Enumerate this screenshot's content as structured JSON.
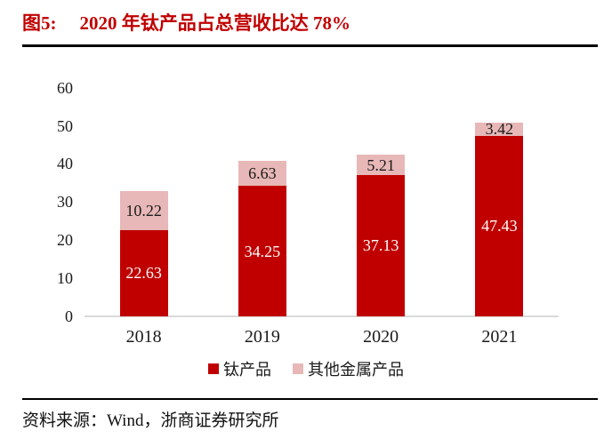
{
  "header": {
    "figure_label": "图5:",
    "title": "2020 年钛产品占总营收比达 78%"
  },
  "chart_data": {
    "type": "bar",
    "stacked": true,
    "title": "2020 年钛产品占总营收比达 78%",
    "categories": [
      "2018",
      "2019",
      "2020",
      "2021"
    ],
    "series": [
      {
        "name": "钛产品",
        "slug": "titanium-products",
        "color": "#c00000",
        "label_color": "#ffffff",
        "values": [
          22.63,
          34.25,
          37.13,
          47.43
        ]
      },
      {
        "name": "其他金属产品",
        "slug": "other-metal-products",
        "color": "#e7b8b7",
        "label_color": "#1a1a1a",
        "values": [
          10.22,
          6.63,
          5.21,
          3.42
        ]
      }
    ],
    "ylim": [
      0,
      60
    ],
    "yticks": [
      0,
      10,
      20,
      30,
      40,
      50,
      60
    ],
    "grid": false,
    "value_labels": true,
    "legend_position": "bottom",
    "xlabel": "",
    "ylabel": ""
  },
  "source": {
    "text": "资料来源：Wind，浙商证券研究所"
  },
  "colors": {
    "bar_red": "#c00000",
    "bar_pink": "#e7b8b7",
    "title_red": "#c00000",
    "axis_line": "#d9d9d9",
    "divider": "#000000",
    "text": "#1a1a1a"
  }
}
